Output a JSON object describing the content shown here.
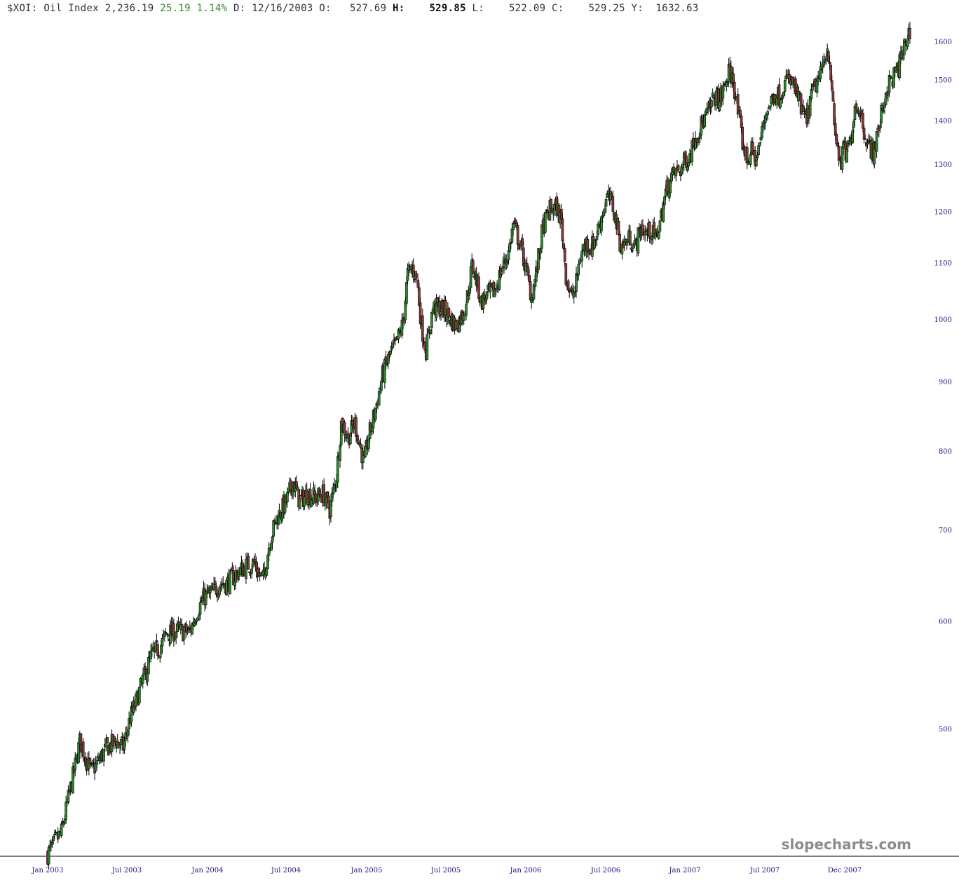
{
  "header": {
    "symbol": "$XOI:",
    "name": "Oil Index",
    "last": "2,236.19",
    "change": "25.19",
    "change_pct": "1.14%",
    "date_label": "D:",
    "date": "12/16/2003",
    "open_label": "O:",
    "open": "527.69",
    "high_label": "H:",
    "high": "529.85",
    "low_label": "L:",
    "low": "522.09",
    "close_label": "C:",
    "close": "529.25",
    "y_label": "Y:",
    "y": "1632.63"
  },
  "watermark": "slopecharts.com",
  "colors": {
    "up": "#2e8b2e",
    "down": "#8b3a3a",
    "wick": "#000000",
    "axis": "#1a1a80",
    "header_positive": "#2e8b2e"
  },
  "chart_data": {
    "type": "candlestick",
    "scale": "log",
    "y_ticks": [
      500,
      600,
      700,
      800,
      900,
      1000,
      1100,
      1200,
      1300,
      1400,
      1500,
      1600
    ],
    "x_ticks": [
      "Jan 2003",
      "Jul 2003",
      "Jan 2004",
      "Jul 2004",
      "Jan 2005",
      "Jul 2005",
      "Jan 2006",
      "Jul 2006",
      "Jan 2007",
      "Jul 2007",
      "Dec 2007"
    ],
    "series": [
      {
        "values": [
          [
            0,
            405
          ],
          [
            12,
            420
          ],
          [
            24,
            470
          ],
          [
            28,
            490
          ],
          [
            38,
            465
          ],
          [
            45,
            475
          ],
          [
            52,
            485
          ],
          [
            60,
            490
          ],
          [
            66,
            485
          ],
          [
            72,
            510
          ],
          [
            76,
            520
          ],
          [
            82,
            540
          ],
          [
            90,
            565
          ],
          [
            98,
            575
          ],
          [
            104,
            588
          ],
          [
            110,
            590
          ],
          [
            116,
            590
          ],
          [
            124,
            590
          ],
          [
            130,
            610
          ],
          [
            136,
            625
          ],
          [
            144,
            630
          ],
          [
            150,
            640
          ],
          [
            156,
            640
          ],
          [
            166,
            652
          ],
          [
            174,
            660
          ],
          [
            180,
            663
          ],
          [
            184,
            650
          ],
          [
            188,
            645
          ],
          [
            194,
            690
          ],
          [
            200,
            715
          ],
          [
            208,
            735
          ],
          [
            214,
            760
          ],
          [
            220,
            735
          ],
          [
            226,
            745
          ],
          [
            234,
            740
          ],
          [
            240,
            745
          ],
          [
            246,
            725
          ],
          [
            252,
            770
          ],
          [
            256,
            840
          ],
          [
            262,
            820
          ],
          [
            268,
            840
          ],
          [
            272,
            810
          ],
          [
            276,
            785
          ],
          [
            280,
            820
          ],
          [
            286,
            860
          ],
          [
            292,
            910
          ],
          [
            298,
            940
          ],
          [
            304,
            960
          ],
          [
            310,
            995
          ],
          [
            314,
            1080
          ],
          [
            318,
            1090
          ],
          [
            322,
            1075
          ],
          [
            326,
            990
          ],
          [
            330,
            950
          ],
          [
            336,
            1020
          ],
          [
            344,
            1020
          ],
          [
            350,
            1005
          ],
          [
            356,
            990
          ],
          [
            362,
            1010
          ],
          [
            366,
            1040
          ],
          [
            370,
            1095
          ],
          [
            374,
            1070
          ],
          [
            378,
            1030
          ],
          [
            382,
            1040
          ],
          [
            390,
            1050
          ],
          [
            396,
            1090
          ],
          [
            402,
            1120
          ],
          [
            406,
            1175
          ],
          [
            410,
            1150
          ],
          [
            414,
            1120
          ],
          [
            418,
            1080
          ],
          [
            422,
            1040
          ],
          [
            426,
            1080
          ],
          [
            432,
            1170
          ],
          [
            438,
            1205
          ],
          [
            444,
            1210
          ],
          [
            448,
            1180
          ],
          [
            452,
            1080
          ],
          [
            456,
            1040
          ],
          [
            460,
            1050
          ],
          [
            464,
            1110
          ],
          [
            470,
            1140
          ],
          [
            474,
            1130
          ],
          [
            478,
            1150
          ],
          [
            484,
            1200
          ],
          [
            488,
            1230
          ],
          [
            492,
            1220
          ],
          [
            496,
            1180
          ],
          [
            500,
            1130
          ],
          [
            504,
            1140
          ],
          [
            508,
            1150
          ],
          [
            512,
            1130
          ],
          [
            518,
            1170
          ],
          [
            522,
            1155
          ],
          [
            526,
            1165
          ],
          [
            530,
            1145
          ],
          [
            534,
            1180
          ],
          [
            540,
            1250
          ],
          [
            546,
            1280
          ],
          [
            552,
            1290
          ],
          [
            556,
            1310
          ],
          [
            560,
            1320
          ],
          [
            564,
            1360
          ],
          [
            570,
            1390
          ],
          [
            576,
            1420
          ],
          [
            582,
            1460
          ],
          [
            586,
            1450
          ],
          [
            590,
            1480
          ],
          [
            594,
            1520
          ],
          [
            598,
            1500
          ],
          [
            602,
            1420
          ],
          [
            606,
            1350
          ],
          [
            610,
            1310
          ],
          [
            614,
            1330
          ],
          [
            618,
            1310
          ],
          [
            622,
            1360
          ],
          [
            626,
            1420
          ],
          [
            630,
            1440
          ],
          [
            634,
            1470
          ],
          [
            638,
            1460
          ],
          [
            642,
            1490
          ],
          [
            646,
            1500
          ],
          [
            650,
            1490
          ],
          [
            654,
            1460
          ],
          [
            658,
            1420
          ],
          [
            662,
            1400
          ],
          [
            666,
            1460
          ],
          [
            670,
            1490
          ],
          [
            674,
            1510
          ],
          [
            678,
            1570
          ],
          [
            680,
            1580
          ],
          [
            682,
            1560
          ],
          [
            684,
            1460
          ],
          [
            686,
            1390
          ],
          [
            688,
            1350
          ],
          [
            690,
            1320
          ],
          [
            692,
            1300
          ],
          [
            694,
            1340
          ],
          [
            696,
            1320
          ],
          [
            700,
            1350
          ],
          [
            704,
            1440
          ],
          [
            708,
            1430
          ],
          [
            712,
            1380
          ],
          [
            716,
            1340
          ],
          [
            720,
            1330
          ],
          [
            724,
            1370
          ],
          [
            728,
            1430
          ],
          [
            732,
            1480
          ],
          [
            736,
            1500
          ],
          [
            740,
            1520
          ],
          [
            744,
            1550
          ],
          [
            748,
            1600
          ],
          [
            752,
            1630
          ]
        ]
      }
    ]
  }
}
